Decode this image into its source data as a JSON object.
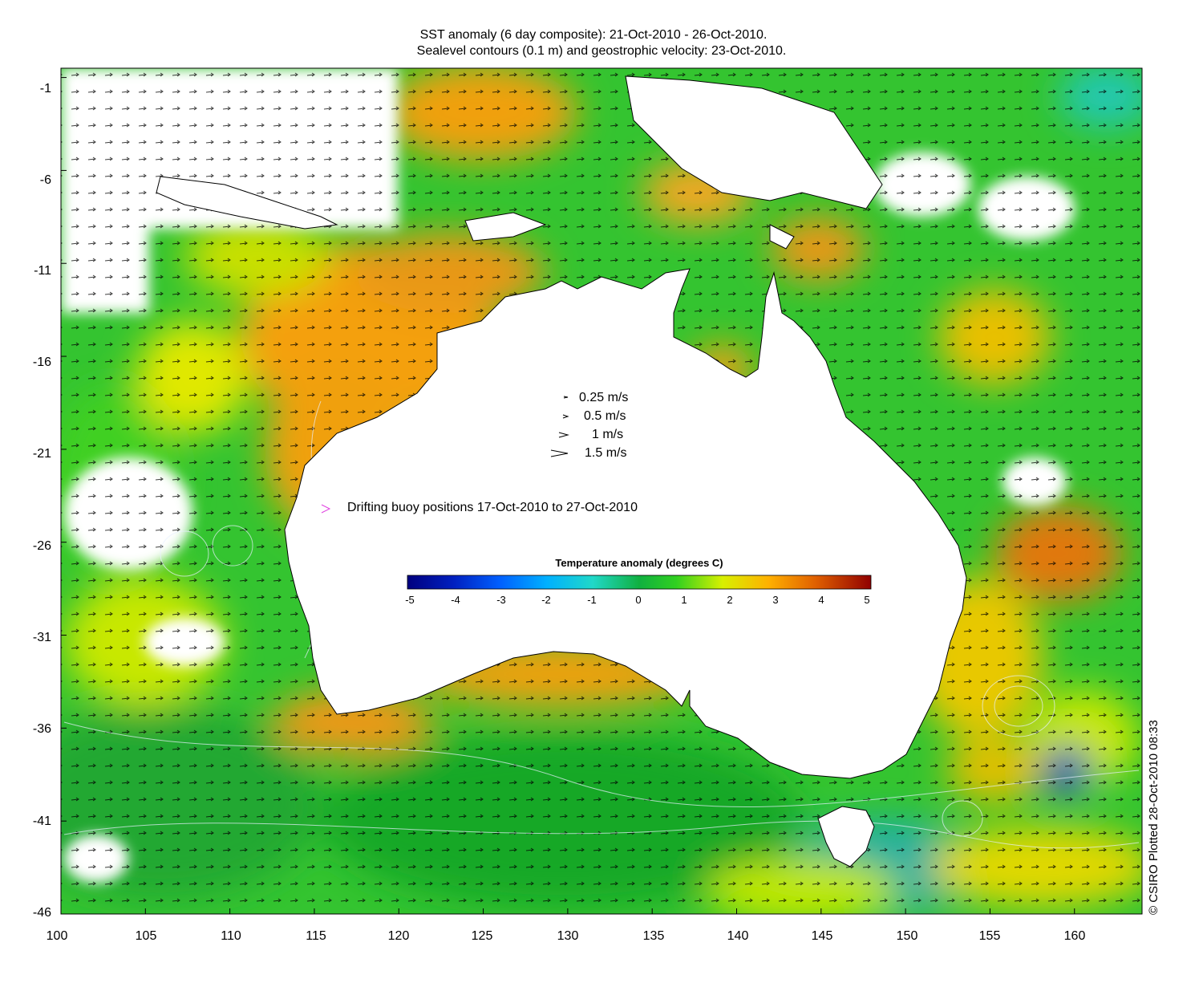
{
  "title_line1": "SST anomaly (6 day composite): 21-Oct-2010 - 26-Oct-2010.",
  "title_line2": "Sealevel contours (0.1 m) and geostrophic velocity: 23-Oct-2010.",
  "axes": {
    "x_range": [
      100,
      164
    ],
    "y_range": [
      -46,
      -0.5
    ],
    "x_ticks": [
      "100",
      "105",
      "110",
      "115",
      "120",
      "125",
      "130",
      "135",
      "140",
      "145",
      "150",
      "155",
      "160"
    ],
    "y_ticks": [
      "-1",
      "-6",
      "-11",
      "-16",
      "-21",
      "-26",
      "-31",
      "-36",
      "-41",
      "-46"
    ]
  },
  "velocity_legend": [
    "0.25 m/s",
    "0.5 m/s",
    "1 m/s",
    "1.5 m/s"
  ],
  "buoy_legend": "Drifting buoy positions 17-Oct-2010 to 27-Oct-2010",
  "buoy_color": "#e040e0",
  "colorbar": {
    "title": "Temperature anomaly (degrees C)",
    "range": [
      -5,
      5
    ],
    "ticks": [
      "-5",
      "-4",
      "-3",
      "-2",
      "-1",
      "0",
      "1",
      "2",
      "3",
      "4",
      "5"
    ],
    "colors": [
      "#00007f",
      "#0020c0",
      "#0060ff",
      "#00b0ff",
      "#20d8c8",
      "#10b040",
      "#30d020",
      "#d8f000",
      "#ffb000",
      "#e06000",
      "#900000"
    ]
  },
  "land_color": "#ffffff",
  "credit": "© CSIRO Plotted 28-Oct-2010 08:33"
}
